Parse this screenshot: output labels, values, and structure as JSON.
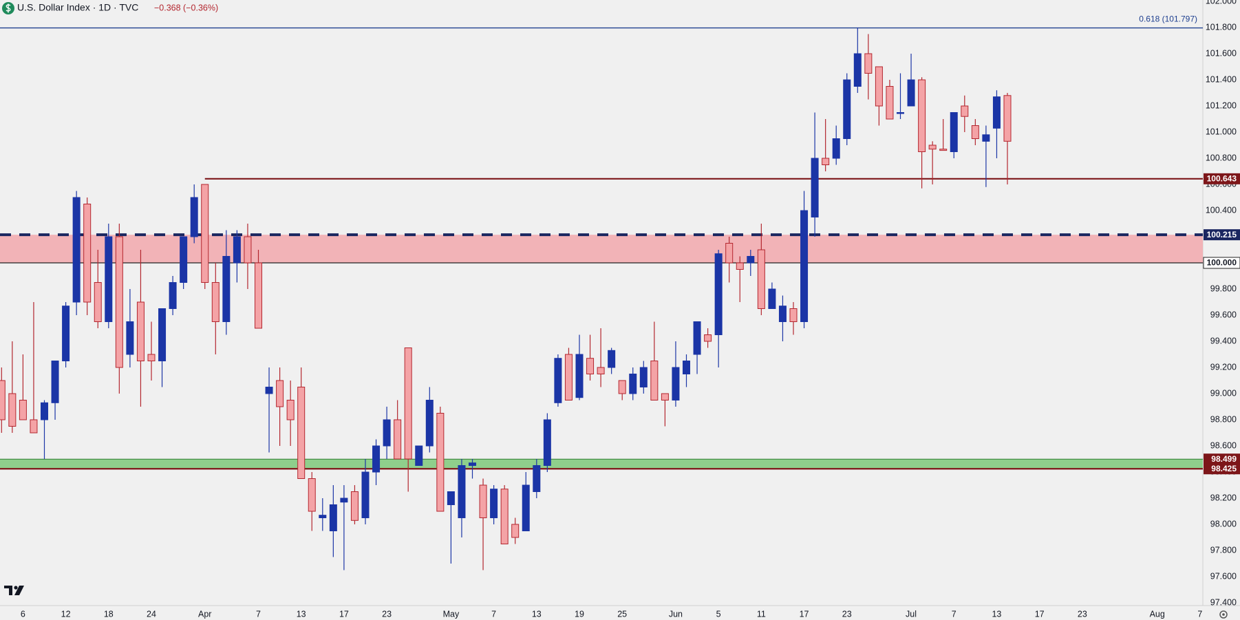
{
  "chart_data": {
    "type": "candlestick",
    "title": "U.S. Dollar Index · 1D · TVC",
    "change": "−0.368 (−0.36%)",
    "up_color": "#1b35a6",
    "down_color": "#f4a3a6",
    "down_edge": "#b3262e",
    "grid": false,
    "categories": [
      null,
      null,
      "6",
      null,
      null,
      null,
      "12",
      null,
      null,
      null,
      "18",
      null,
      null,
      null,
      "24",
      null,
      null,
      null,
      null,
      "Apr",
      null,
      null,
      null,
      null,
      "7",
      null,
      null,
      null,
      "13",
      null,
      null,
      null,
      "17",
      null,
      null,
      null,
      "23",
      null,
      null,
      null,
      null,
      null,
      "May",
      null,
      null,
      null,
      "7",
      null,
      null,
      null,
      "13",
      null,
      null,
      null,
      "19",
      null,
      null,
      null,
      "25",
      null,
      null,
      null,
      null,
      "Jun",
      null,
      null,
      null,
      "5",
      null,
      null,
      null,
      "11",
      null,
      null,
      null,
      "17",
      null,
      null,
      null,
      "23",
      null,
      null,
      null,
      null,
      null,
      "Jul",
      null,
      null,
      null,
      "7",
      null,
      null,
      null,
      "13",
      null,
      null,
      null,
      "17",
      null,
      null,
      null,
      "23",
      null,
      null,
      null,
      null,
      null,
      null,
      "Aug",
      null,
      null,
      null,
      "7"
    ],
    "open": [
      99.1,
      99.0,
      98.95,
      98.8,
      98.8,
      98.93,
      99.25,
      99.7,
      100.45,
      99.85,
      99.55,
      100.2,
      99.3,
      99.7,
      99.3,
      99.25,
      99.65,
      99.85,
      100.2,
      100.6,
      99.85,
      99.55,
      100.0,
      100.2,
      100.0,
      99.0,
      99.1,
      98.95,
      99.05,
      98.35,
      98.05,
      97.95,
      98.17,
      98.25,
      98.05,
      98.4,
      98.6,
      98.8,
      99.35,
      98.45,
      98.6,
      98.85,
      98.15,
      98.05,
      98.45,
      98.3,
      98.05,
      98.27,
      98.0,
      97.95,
      98.25,
      98.45,
      98.93,
      99.3,
      98.97,
      99.27,
      99.2,
      99.2,
      99.1,
      99.0,
      99.05,
      99.25,
      99.0,
      98.95,
      99.15,
      99.3,
      99.45,
      99.45,
      100.15,
      100.0,
      100.0,
      100.1,
      99.65,
      99.55,
      99.65,
      99.55,
      100.35,
      100.8,
      100.8,
      100.95,
      101.35,
      101.6,
      101.5,
      101.35,
      101.15,
      101.2,
      101.4,
      100.9,
      100.87,
      100.85,
      101.2,
      101.05,
      100.93,
      101.03,
      101.28,
      null,
      null,
      null,
      null,
      null,
      null,
      null,
      null,
      null,
      null,
      null,
      null,
      null,
      null,
      null,
      null,
      null,
      null
    ],
    "high": [
      99.2,
      99.4,
      99.3,
      99.7,
      98.95,
      99.25,
      99.7,
      100.55,
      100.5,
      100.1,
      100.3,
      100.3,
      99.8,
      100.1,
      99.55,
      99.65,
      99.9,
      100.2,
      100.6,
      100.6,
      100.0,
      100.25,
      100.25,
      100.3,
      100.1,
      99.2,
      99.2,
      99.1,
      99.2,
      98.4,
      98.2,
      98.3,
      98.3,
      98.3,
      98.5,
      98.65,
      98.9,
      98.95,
      99.35,
      98.6,
      99.05,
      98.9,
      98.25,
      98.5,
      98.5,
      98.35,
      98.3,
      98.3,
      98.05,
      98.4,
      98.5,
      98.85,
      99.3,
      99.35,
      99.45,
      99.45,
      99.5,
      99.35,
      99.1,
      99.2,
      99.25,
      99.55,
      99.0,
      99.4,
      99.3,
      99.55,
      99.5,
      100.1,
      100.2,
      100.05,
      100.1,
      100.3,
      99.85,
      99.75,
      99.7,
      100.55,
      101.15,
      101.1,
      101.05,
      101.45,
      101.8,
      101.75,
      101.5,
      101.4,
      101.45,
      101.6,
      101.42,
      100.93,
      101.1,
      101.15,
      101.28,
      101.1,
      101.05,
      101.32,
      101.3,
      null,
      null,
      null,
      null,
      null,
      null,
      null,
      null,
      null,
      null,
      null,
      null,
      null,
      null,
      null,
      null,
      null,
      null
    ],
    "low": [
      98.7,
      98.7,
      98.8,
      98.7,
      98.5,
      98.8,
      99.2,
      99.6,
      99.6,
      99.5,
      99.5,
      99.0,
      99.2,
      98.9,
      99.1,
      99.05,
      99.6,
      99.8,
      100.15,
      99.8,
      99.3,
      99.45,
      99.85,
      99.8,
      99.5,
      98.55,
      98.6,
      98.6,
      98.35,
      97.95,
      97.95,
      97.75,
      97.65,
      98.0,
      98.0,
      98.3,
      98.5,
      98.5,
      98.25,
      98.45,
      98.55,
      98.1,
      97.7,
      97.9,
      98.35,
      97.65,
      98.0,
      97.85,
      97.85,
      97.95,
      98.2,
      98.4,
      98.9,
      98.95,
      98.95,
      99.1,
      99.05,
      99.15,
      98.95,
      98.95,
      99.0,
      98.95,
      98.75,
      98.9,
      99.05,
      99.15,
      99.35,
      99.2,
      99.85,
      99.7,
      99.9,
      99.6,
      99.65,
      99.4,
      99.45,
      99.5,
      100.2,
      100.7,
      100.75,
      100.9,
      101.3,
      101.25,
      101.05,
      101.1,
      101.1,
      101.2,
      100.57,
      100.6,
      100.86,
      100.8,
      101.0,
      100.9,
      100.58,
      100.8,
      100.6,
      null,
      null,
      null,
      null,
      null,
      null,
      null,
      null,
      null,
      null,
      null,
      null,
      null,
      null,
      null,
      null,
      null,
      null
    ],
    "close": [
      98.8,
      98.75,
      98.8,
      98.7,
      98.93,
      99.25,
      99.67,
      100.5,
      99.7,
      99.55,
      100.2,
      99.2,
      99.55,
      99.25,
      99.25,
      99.65,
      99.85,
      100.2,
      100.5,
      99.85,
      99.55,
      100.05,
      100.2,
      100.0,
      99.5,
      99.05,
      98.9,
      98.8,
      98.35,
      98.1,
      98.07,
      98.15,
      98.2,
      98.03,
      98.4,
      98.6,
      98.8,
      98.5,
      98.5,
      98.6,
      98.95,
      98.1,
      98.25,
      98.45,
      98.47,
      98.05,
      98.27,
      97.85,
      97.9,
      98.3,
      98.45,
      98.8,
      99.27,
      98.95,
      99.3,
      99.15,
      99.15,
      99.33,
      99.0,
      99.15,
      99.2,
      98.95,
      98.95,
      99.2,
      99.25,
      99.55,
      99.4,
      100.07,
      100.0,
      99.95,
      100.05,
      99.65,
      99.8,
      99.67,
      99.55,
      100.4,
      100.8,
      100.75,
      100.95,
      101.4,
      101.6,
      101.45,
      101.2,
      101.1,
      101.15,
      101.4,
      100.85,
      100.87,
      100.86,
      101.15,
      101.12,
      100.95,
      100.98,
      101.27,
      100.93,
      null,
      null,
      null,
      null,
      null,
      null,
      null,
      null,
      null,
      null,
      null,
      null,
      null,
      null,
      null,
      null,
      null,
      null
    ],
    "ylim": [
      97.4,
      102.0
    ],
    "yticks": [
      {
        "value": 97.4,
        "label": "97.400"
      },
      {
        "value": 97.6,
        "label": "97.600"
      },
      {
        "value": 97.8,
        "label": "97.800"
      },
      {
        "value": 98.0,
        "label": "98.000"
      },
      {
        "value": 98.2,
        "label": "98.200"
      },
      {
        "value": 98.4,
        "label": "98.400"
      },
      {
        "value": 98.6,
        "label": "98.600"
      },
      {
        "value": 98.8,
        "label": "98.800"
      },
      {
        "value": 99.0,
        "label": "99.000"
      },
      {
        "value": 99.2,
        "label": "99.200"
      },
      {
        "value": 99.4,
        "label": "99.400"
      },
      {
        "value": 99.6,
        "label": "99.600"
      },
      {
        "value": 99.8,
        "label": "99.800"
      },
      {
        "value": 100.0,
        "label": "100.000"
      },
      {
        "value": 100.2,
        "label": "100.200"
      },
      {
        "value": 100.4,
        "label": "100.400"
      },
      {
        "value": 100.6,
        "label": "100.600"
      },
      {
        "value": 100.8,
        "label": "100.800"
      },
      {
        "value": 101.0,
        "label": "101.000"
      },
      {
        "value": 101.2,
        "label": "101.200"
      },
      {
        "value": 101.4,
        "label": "101.400"
      },
      {
        "value": 101.6,
        "label": "101.600"
      },
      {
        "value": 101.8,
        "label": "101.800"
      },
      {
        "value": 102.0,
        "label": "102.000"
      }
    ],
    "zones": [
      {
        "from": 100.0,
        "to": 100.215,
        "color": "#f2b3b7"
      },
      {
        "from": 98.425,
        "to": 98.499,
        "color": "#8fcf8c"
      }
    ],
    "levels": [
      {
        "value": 101.797,
        "label": "0.618 (101.797)",
        "color": "#1e3f8f",
        "style": "fib"
      },
      {
        "value": 100.643,
        "label": "100.643",
        "color": "#7d1619",
        "style": "solid"
      },
      {
        "value": 100.215,
        "label": "100.215",
        "color": "#1a2660",
        "style": "dashed"
      },
      {
        "value": 100.0,
        "label": "100.000",
        "color": "#222222",
        "style": "thin"
      },
      {
        "value": 98.499,
        "label": "98.499",
        "color": "#7d1619",
        "style": "zone-edge"
      },
      {
        "value": 98.425,
        "label": "98.425",
        "color": "#7d1619",
        "style": "solid"
      }
    ]
  }
}
